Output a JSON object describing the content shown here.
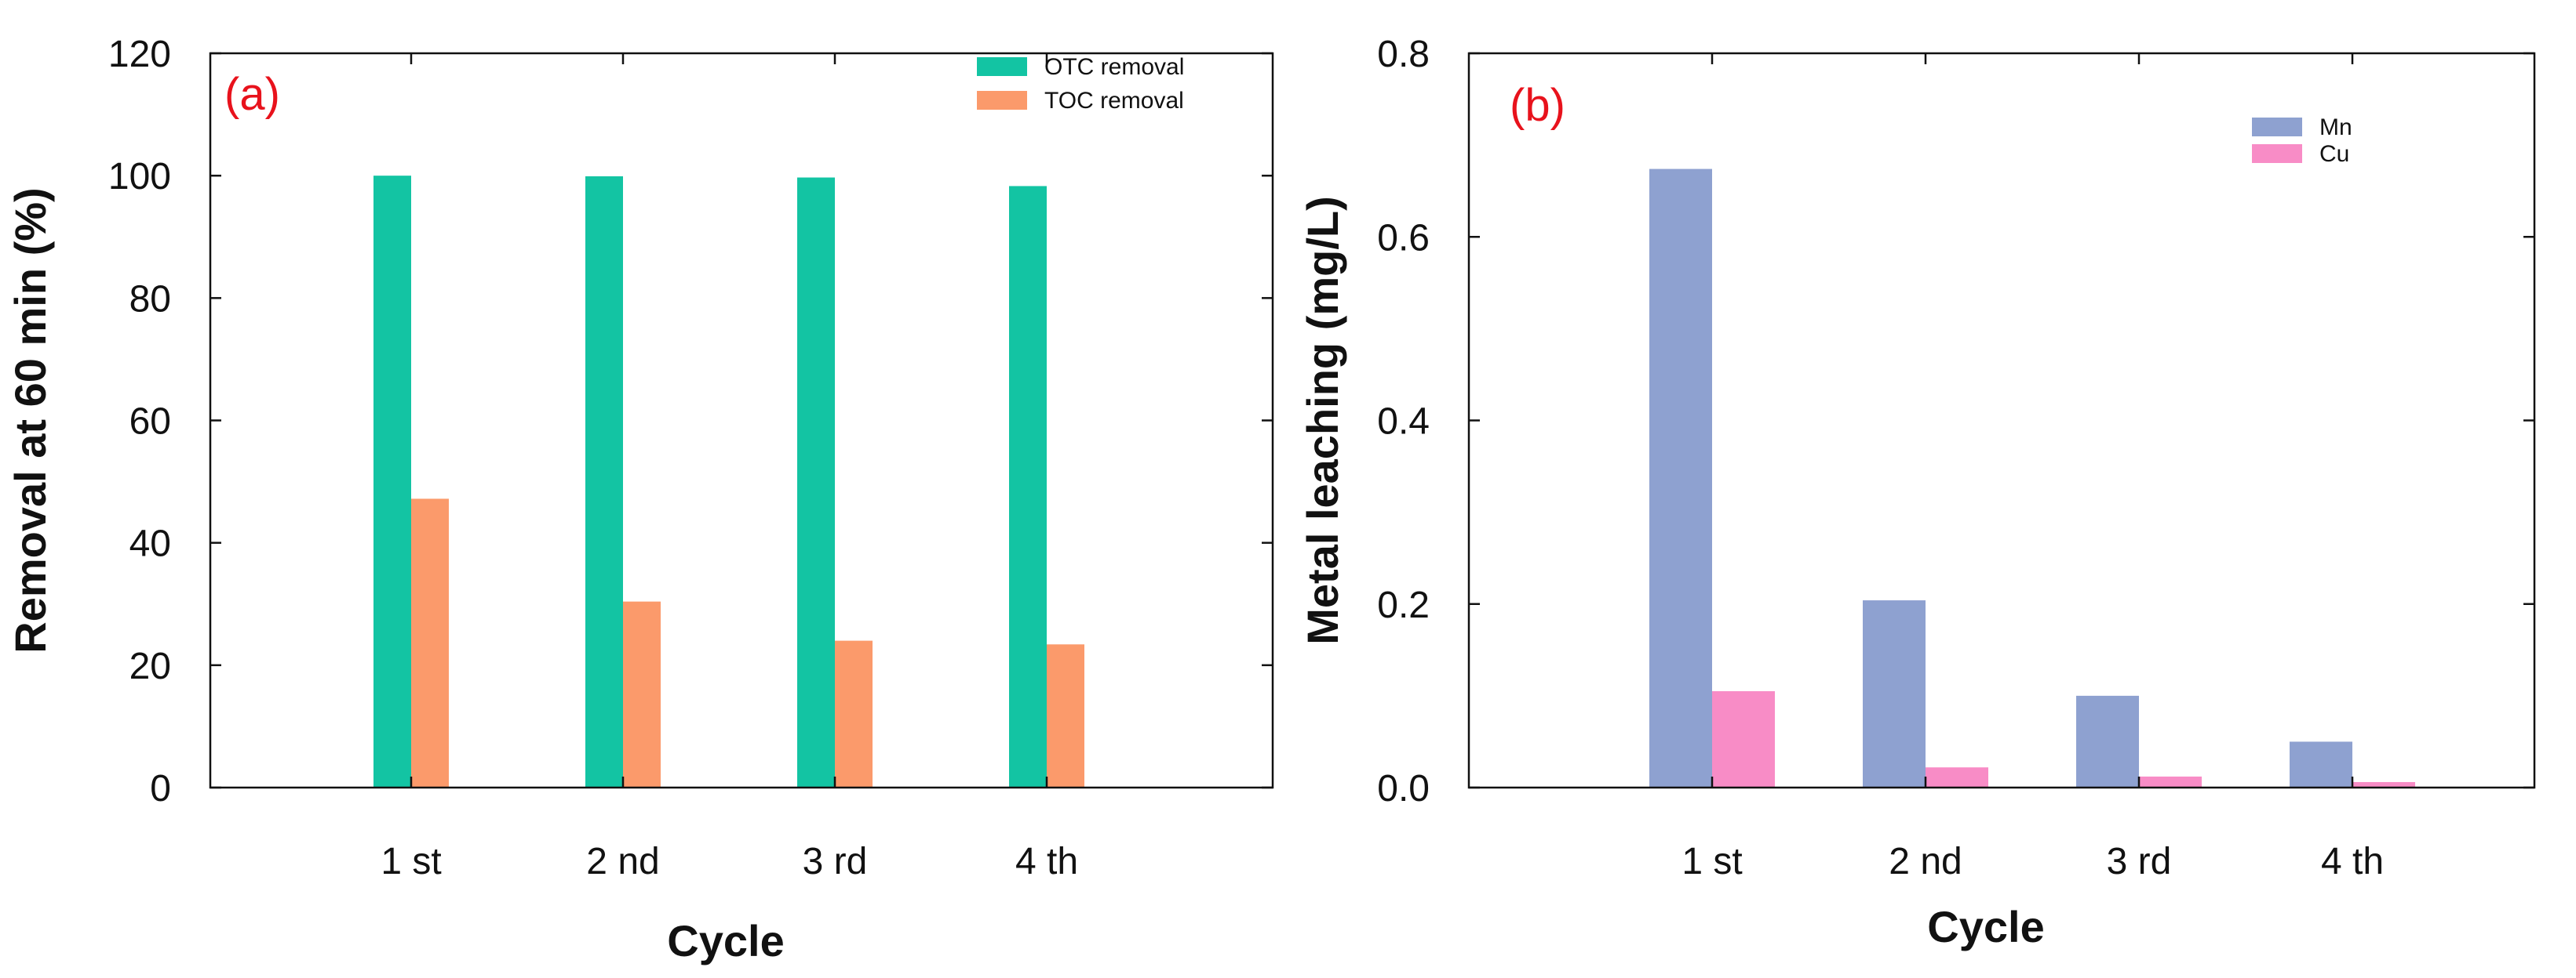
{
  "chart_data": [
    {
      "type": "bar",
      "panel_label": "(a)",
      "categories": [
        "1 st",
        "2 nd",
        "3 rd",
        "4 th"
      ],
      "xlabel": "Cycle",
      "ylabel": "Removal at 60 min (%)",
      "ylim": [
        0,
        120
      ],
      "yticks": [
        0,
        20,
        40,
        60,
        80,
        100,
        120
      ],
      "ytick_labels": [
        "0",
        "20",
        "40",
        "60",
        "80",
        "100",
        "120"
      ],
      "legend_position": "top-right",
      "series": [
        {
          "name": "OTC removal",
          "color": "#13c4a3",
          "values": [
            100,
            99.9,
            99.7,
            98.3
          ]
        },
        {
          "name": "TOC removal",
          "color": "#fb9a6b",
          "values": [
            47.2,
            30.4,
            24.0,
            23.4
          ]
        }
      ]
    },
    {
      "type": "bar",
      "panel_label": "(b)",
      "categories": [
        "1 st",
        "2 nd",
        "3 rd",
        "4 th"
      ],
      "xlabel": "Cycle",
      "ylabel": "Metal leaching (mg/L)",
      "ylim": [
        0,
        0.8
      ],
      "yticks": [
        0,
        0.2,
        0.4,
        0.6,
        0.8
      ],
      "ytick_labels": [
        "0.0",
        "0.2",
        "0.4",
        "0.6",
        "0.8"
      ],
      "legend_position": "top-right",
      "series": [
        {
          "name": "Mn",
          "color": "#8ea1d0",
          "values": [
            0.674,
            0.204,
            0.1,
            0.05
          ]
        },
        {
          "name": "Cu",
          "color": "#f88cc6",
          "values": [
            0.105,
            0.022,
            0.012,
            0.006
          ]
        }
      ]
    }
  ]
}
